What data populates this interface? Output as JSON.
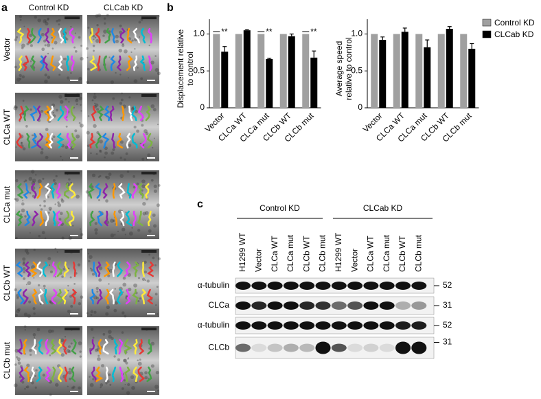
{
  "panel_a": {
    "label": "a",
    "columns": [
      "Control KD",
      "CLCab KD"
    ],
    "rows": [
      "Vector",
      "CLCa WT",
      "CLCa mut",
      "CLCb WT",
      "CLCb mut"
    ]
  },
  "panel_b_label": "b",
  "chart_data": [
    {
      "type": "bar",
      "ylabel": "Displacement relative to control",
      "categories": [
        "Vector",
        "CLCa WT",
        "CLCa mut",
        "CLCb WT",
        "CLCb mut"
      ],
      "series": [
        {
          "name": "Control KD",
          "color": "#a0a0a0",
          "values": [
            1,
            1,
            1,
            1,
            1
          ]
        },
        {
          "name": "CLCab KD",
          "color": "#000000",
          "values": [
            0.76,
            1.05,
            0.66,
            0.97,
            0.68
          ],
          "errors": [
            0.07,
            0.01,
            0.01,
            0.03,
            0.09
          ]
        }
      ],
      "ylim": [
        0,
        1.2
      ],
      "yticks": [
        0,
        0.5,
        {
          "value": 1,
          "label": "1.0"
        }
      ],
      "annotations": [
        "**",
        "**",
        "**"
      ]
    },
    {
      "type": "bar",
      "ylabel": "Average speed relative to control",
      "categories": [
        "Vector",
        "CLCa WT",
        "CLCa mut",
        "CLCb WT",
        "CLCb mut"
      ],
      "series": [
        {
          "name": "Control KD",
          "color": "#a0a0a0",
          "values": [
            1,
            1,
            1,
            1,
            1
          ]
        },
        {
          "name": "CLCab KD",
          "color": "#000000",
          "values": [
            0.92,
            1.03,
            0.82,
            1.07,
            0.8
          ],
          "errors": [
            0.04,
            0.05,
            0.1,
            0.03,
            0.07
          ]
        }
      ],
      "ylim": [
        0,
        1.2
      ],
      "yticks": [
        0,
        0.5,
        {
          "value": 1,
          "label": "1.0"
        }
      ],
      "legend": "right"
    }
  ],
  "panel_c": {
    "label": "c",
    "groups": [
      "Control KD",
      "CLCab KD"
    ],
    "lanes": [
      "H1299 WT",
      "Vector",
      "CLCa WT",
      "CLCa mut",
      "CLCb WT",
      "CLCb mut",
      "H1299 WT",
      "Vector",
      "CLCa WT",
      "CLCa mut",
      "CLCb WT",
      "CLCb mut"
    ],
    "blots": [
      {
        "label": "α-tubulin",
        "marker": "52"
      },
      {
        "label": "CLCa",
        "marker": "31"
      },
      {
        "label": "α-tubulin",
        "marker": "52"
      },
      {
        "label": "CLCb",
        "marker": "31"
      }
    ]
  }
}
